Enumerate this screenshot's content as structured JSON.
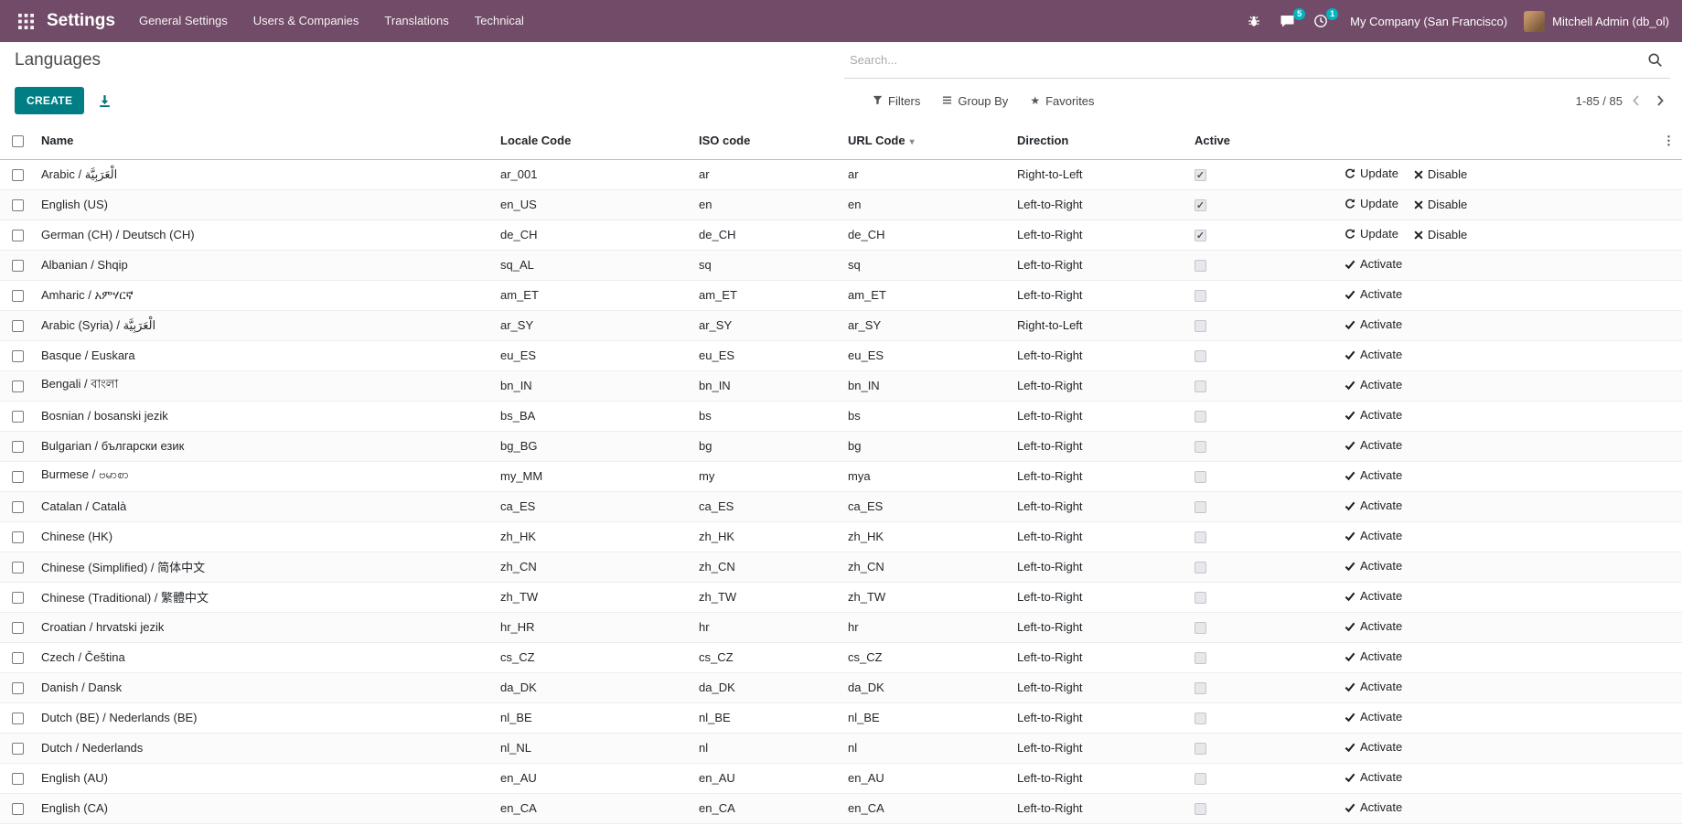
{
  "topbar": {
    "app_title": "Settings",
    "menu_items": [
      "General Settings",
      "Users & Companies",
      "Translations",
      "Technical"
    ],
    "messages_badge": "5",
    "activities_badge": "1",
    "company": "My Company (San Francisco)",
    "user": "Mitchell Admin (db_ol)"
  },
  "control_panel": {
    "breadcrumb": "Languages",
    "create_label": "CREATE",
    "search_placeholder": "Search...",
    "filters_label": "Filters",
    "group_by_label": "Group By",
    "favorites_label": "Favorites",
    "pager": "1-85 / 85"
  },
  "icons": {
    "star": "★",
    "sort_caret": "▾",
    "column_toggle": "⋮",
    "check": "✓"
  },
  "colors": {
    "topbar": "#714B67",
    "primary": "#017E84",
    "badge": "#00B5C0"
  },
  "table": {
    "headers": [
      "Name",
      "Locale Code",
      "ISO code",
      "URL Code",
      "Direction",
      "Active"
    ],
    "sorted_column": "URL Code",
    "row_actions": {
      "update": "Update",
      "disable": "Disable",
      "activate": "Activate"
    },
    "rows": [
      {
        "name": "Arabic / الْعَرَبِيَّة",
        "locale": "ar_001",
        "iso": "ar",
        "url": "ar",
        "direction": "Right-to-Left",
        "active": true
      },
      {
        "name": "English (US)",
        "locale": "en_US",
        "iso": "en",
        "url": "en",
        "direction": "Left-to-Right",
        "active": true
      },
      {
        "name": "German (CH) / Deutsch (CH)",
        "locale": "de_CH",
        "iso": "de_CH",
        "url": "de_CH",
        "direction": "Left-to-Right",
        "active": true
      },
      {
        "name": "Albanian / Shqip",
        "locale": "sq_AL",
        "iso": "sq",
        "url": "sq",
        "direction": "Left-to-Right",
        "active": false
      },
      {
        "name": "Amharic / አምሃርኛ",
        "locale": "am_ET",
        "iso": "am_ET",
        "url": "am_ET",
        "direction": "Left-to-Right",
        "active": false
      },
      {
        "name": "Arabic (Syria) / الْعَرَبِيَّة",
        "locale": "ar_SY",
        "iso": "ar_SY",
        "url": "ar_SY",
        "direction": "Right-to-Left",
        "active": false
      },
      {
        "name": "Basque / Euskara",
        "locale": "eu_ES",
        "iso": "eu_ES",
        "url": "eu_ES",
        "direction": "Left-to-Right",
        "active": false
      },
      {
        "name": "Bengali / বাংলা",
        "locale": "bn_IN",
        "iso": "bn_IN",
        "url": "bn_IN",
        "direction": "Left-to-Right",
        "active": false
      },
      {
        "name": "Bosnian / bosanski jezik",
        "locale": "bs_BA",
        "iso": "bs",
        "url": "bs",
        "direction": "Left-to-Right",
        "active": false
      },
      {
        "name": "Bulgarian / български език",
        "locale": "bg_BG",
        "iso": "bg",
        "url": "bg",
        "direction": "Left-to-Right",
        "active": false
      },
      {
        "name": "Burmese / ဗမာစာ",
        "locale": "my_MM",
        "iso": "my",
        "url": "mya",
        "direction": "Left-to-Right",
        "active": false
      },
      {
        "name": "Catalan / Català",
        "locale": "ca_ES",
        "iso": "ca_ES",
        "url": "ca_ES",
        "direction": "Left-to-Right",
        "active": false
      },
      {
        "name": "Chinese (HK)",
        "locale": "zh_HK",
        "iso": "zh_HK",
        "url": "zh_HK",
        "direction": "Left-to-Right",
        "active": false
      },
      {
        "name": "Chinese (Simplified) / 简体中文",
        "locale": "zh_CN",
        "iso": "zh_CN",
        "url": "zh_CN",
        "direction": "Left-to-Right",
        "active": false
      },
      {
        "name": "Chinese (Traditional) / 繁體中文",
        "locale": "zh_TW",
        "iso": "zh_TW",
        "url": "zh_TW",
        "direction": "Left-to-Right",
        "active": false
      },
      {
        "name": "Croatian / hrvatski jezik",
        "locale": "hr_HR",
        "iso": "hr",
        "url": "hr",
        "direction": "Left-to-Right",
        "active": false
      },
      {
        "name": "Czech / Čeština",
        "locale": "cs_CZ",
        "iso": "cs_CZ",
        "url": "cs_CZ",
        "direction": "Left-to-Right",
        "active": false
      },
      {
        "name": "Danish / Dansk",
        "locale": "da_DK",
        "iso": "da_DK",
        "url": "da_DK",
        "direction": "Left-to-Right",
        "active": false
      },
      {
        "name": "Dutch (BE) / Nederlands (BE)",
        "locale": "nl_BE",
        "iso": "nl_BE",
        "url": "nl_BE",
        "direction": "Left-to-Right",
        "active": false
      },
      {
        "name": "Dutch / Nederlands",
        "locale": "nl_NL",
        "iso": "nl",
        "url": "nl",
        "direction": "Left-to-Right",
        "active": false
      },
      {
        "name": "English (AU)",
        "locale": "en_AU",
        "iso": "en_AU",
        "url": "en_AU",
        "direction": "Left-to-Right",
        "active": false
      },
      {
        "name": "English (CA)",
        "locale": "en_CA",
        "iso": "en_CA",
        "url": "en_CA",
        "direction": "Left-to-Right",
        "active": false
      }
    ]
  }
}
